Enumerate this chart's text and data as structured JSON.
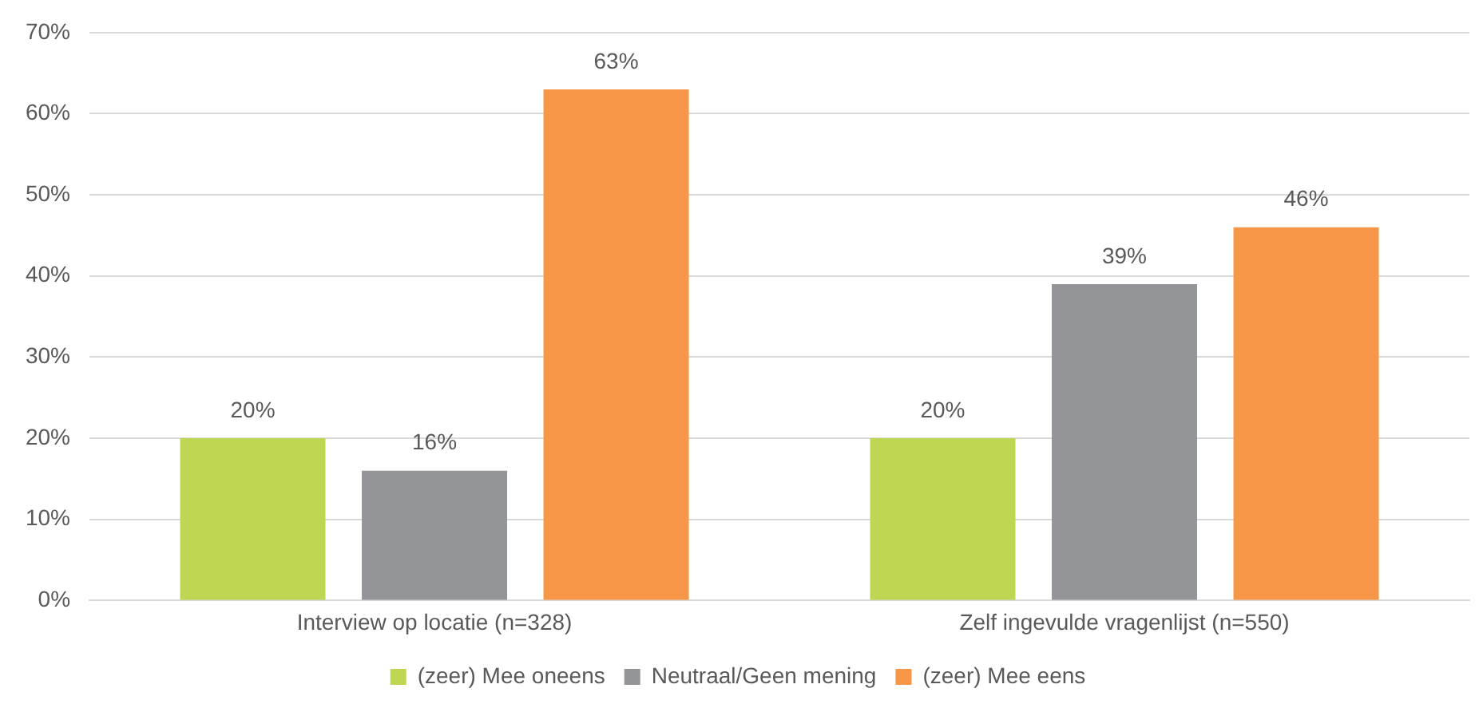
{
  "chart_data": {
    "type": "bar",
    "categories": [
      "Interview op locatie (n=328)",
      "Zelf ingevulde vragenlijst (n=550)"
    ],
    "series": [
      {
        "name": "(zeer) Mee oneens",
        "color": "#bdd753",
        "values": [
          20,
          20
        ],
        "value_labels": [
          "20%",
          "20%"
        ]
      },
      {
        "name": "Neutraal/Geen mening",
        "color": "#939598",
        "values": [
          16,
          39
        ],
        "value_labels": [
          "16%",
          "39%"
        ]
      },
      {
        "name": "(zeer) Mee eens",
        "color": "#f79646",
        "values": [
          63,
          46
        ],
        "value_labels": [
          "63%",
          "46%"
        ]
      }
    ],
    "ylim": [
      0,
      70
    ],
    "yticks": [
      {
        "value": 0,
        "label": "0%"
      },
      {
        "value": 10,
        "label": "10%"
      },
      {
        "value": 20,
        "label": "20%"
      },
      {
        "value": 30,
        "label": "30%"
      },
      {
        "value": 40,
        "label": "40%"
      },
      {
        "value": 50,
        "label": "50%"
      },
      {
        "value": 60,
        "label": "60%"
      },
      {
        "value": 70,
        "label": "70%"
      }
    ],
    "grid": "y",
    "legend": "bottom"
  }
}
